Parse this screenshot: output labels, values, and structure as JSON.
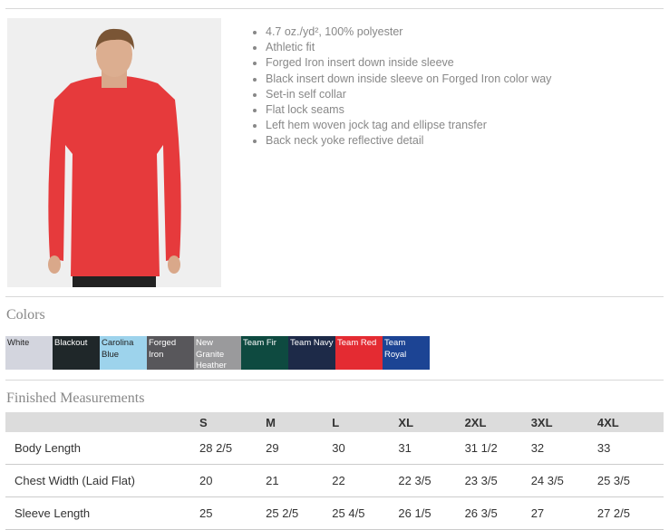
{
  "features": [
    "4.7 oz./yd², 100% polyester",
    "Athletic fit",
    "Forged Iron insert down inside sleeve",
    "Black insert down inside sleeve on Forged Iron color way",
    "Set-in self collar",
    "Flat lock seams",
    "Left hem woven jock tag and ellipse transfer",
    "Back neck yoke reflective detail"
  ],
  "colors_title": "Colors",
  "colors": [
    {
      "name": "White",
      "bg": "#d3d5de",
      "fg": "#222"
    },
    {
      "name": "Blackout",
      "bg": "#1f2729",
      "fg": "#fff"
    },
    {
      "name": "Carolina Blue",
      "bg": "#9dd3ec",
      "fg": "#222"
    },
    {
      "name": "Forged Iron",
      "bg": "#58575b",
      "fg": "#fff"
    },
    {
      "name": "New Granite Heather",
      "bg": "#9a9a9c",
      "fg": "#fff"
    },
    {
      "name": "Team Fir",
      "bg": "#0e4a40",
      "fg": "#fff"
    },
    {
      "name": "Team Navy",
      "bg": "#1d2a48",
      "fg": "#fff"
    },
    {
      "name": "Team Red",
      "bg": "#e42b32",
      "fg": "#fff"
    },
    {
      "name": "Team Royal",
      "bg": "#1c4494",
      "fg": "#fff"
    }
  ],
  "measurements_title": "Finished Measurements",
  "table": {
    "headers": [
      "",
      "S",
      "M",
      "L",
      "XL",
      "2XL",
      "3XL",
      "4XL"
    ],
    "rows": [
      [
        "Body Length",
        "28 2/5",
        "29",
        "30",
        "31",
        "31 1/2",
        "32",
        "33"
      ],
      [
        "Chest Width (Laid Flat)",
        "20",
        "21",
        "22",
        "22 3/5",
        "23 3/5",
        "24 3/5",
        "25 3/5"
      ],
      [
        "Sleeve Length",
        "25",
        "25 2/5",
        "25 4/5",
        "26 1/5",
        "26 3/5",
        "27",
        "27 2/5"
      ]
    ]
  }
}
